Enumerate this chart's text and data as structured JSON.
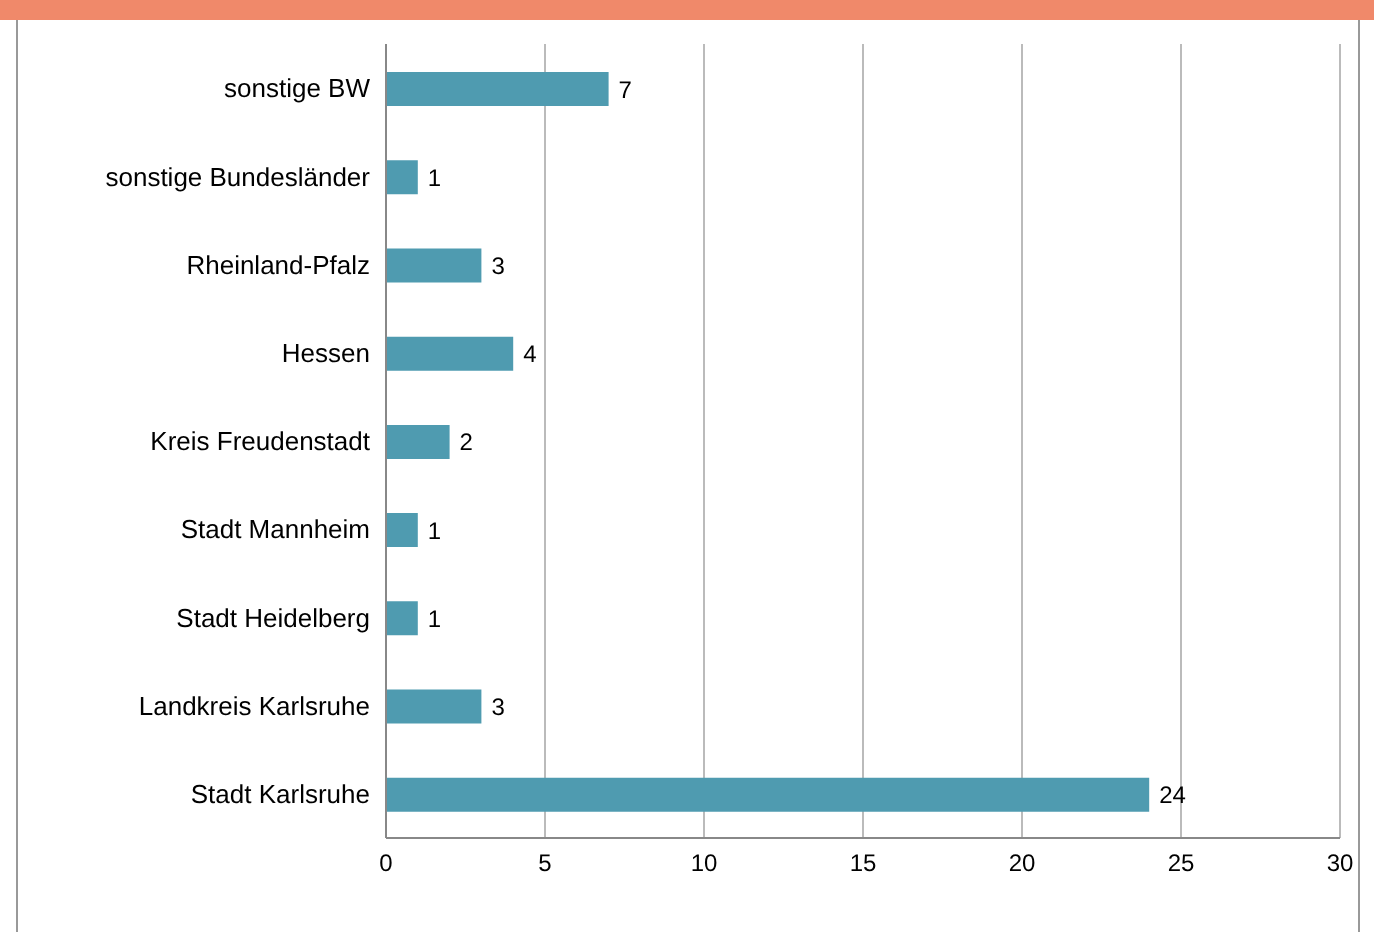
{
  "chart_data": {
    "type": "bar",
    "orientation": "horizontal",
    "categories": [
      "sonstige BW",
      "sonstige Bundesländer",
      "Rheinland-Pfalz",
      "Hessen",
      "Kreis Freudenstadt",
      "Stadt Mannheim",
      "Stadt Heidelberg",
      "Landkreis Karlsruhe",
      "Stadt Karlsruhe"
    ],
    "values": [
      7,
      1,
      3,
      4,
      2,
      1,
      1,
      3,
      24
    ],
    "color": "#4f9bb0",
    "xlim": [
      0,
      30
    ],
    "xticks": [
      0,
      5,
      10,
      15,
      20,
      25,
      30
    ],
    "grid": "x",
    "data_labels": true
  }
}
